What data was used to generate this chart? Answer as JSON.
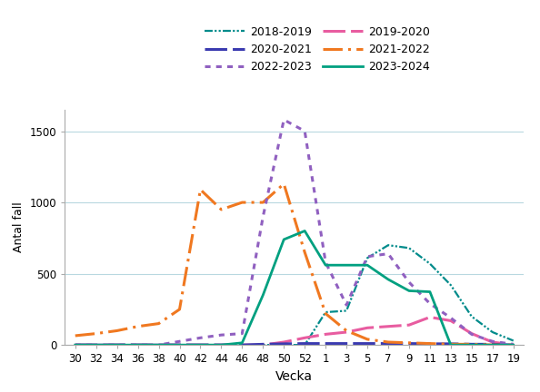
{
  "title": "",
  "xlabel": "Vecka",
  "ylabel": "Antal fall",
  "ylim": [
    0,
    1650
  ],
  "yticks": [
    0,
    500,
    1000,
    1500
  ],
  "x_labels": [
    "30",
    "32",
    "34",
    "36",
    "38",
    "40",
    "42",
    "44",
    "46",
    "48",
    "50",
    "52",
    "1",
    "3",
    "5",
    "7",
    "9",
    "11",
    "13",
    "15",
    "17",
    "19"
  ],
  "background_color": "#ffffff",
  "grid_color": "#b8d8e0",
  "series": [
    {
      "label": "2018-2019",
      "color": "#008b8b",
      "linestyle": "dashdot_dot",
      "linewidth": 1.6,
      "y": [
        0,
        0,
        0,
        0,
        0,
        0,
        0,
        0,
        0,
        0,
        0,
        0,
        230,
        240,
        610,
        700,
        680,
        570,
        420,
        200,
        90,
        30
      ]
    },
    {
      "label": "2019-2020",
      "color": "#e85ca0",
      "linestyle": "longdash",
      "linewidth": 2.2,
      "y": [
        0,
        0,
        0,
        0,
        0,
        0,
        0,
        0,
        0,
        0,
        20,
        50,
        75,
        90,
        120,
        130,
        140,
        195,
        170,
        80,
        20,
        0
      ]
    },
    {
      "label": "2020-2021",
      "color": "#3a3ab0",
      "linestyle": "longdash",
      "linewidth": 2.2,
      "y": [
        0,
        0,
        0,
        0,
        0,
        0,
        0,
        0,
        0,
        5,
        8,
        10,
        10,
        10,
        10,
        10,
        10,
        8,
        8,
        5,
        5,
        0
      ]
    },
    {
      "label": "2021-2022",
      "color": "#f07820",
      "linestyle": "dashdot",
      "linewidth": 2.2,
      "y": [
        65,
        80,
        100,
        130,
        150,
        250,
        1090,
        950,
        1000,
        1000,
        1130,
        650,
        220,
        100,
        40,
        20,
        15,
        10,
        5,
        5,
        0,
        0
      ]
    },
    {
      "label": "2022-2023",
      "color": "#9060c0",
      "linestyle": "dotted",
      "linewidth": 2.2,
      "y": [
        0,
        0,
        0,
        0,
        0,
        25,
        50,
        70,
        80,
        900,
        1580,
        1500,
        580,
        280,
        620,
        640,
        440,
        290,
        190,
        75,
        25,
        5
      ]
    },
    {
      "label": "2023-2024",
      "color": "#00a080",
      "linestyle": "solid",
      "linewidth": 2.0,
      "y": [
        0,
        0,
        0,
        0,
        0,
        0,
        0,
        0,
        15,
        350,
        740,
        800,
        560,
        560,
        560,
        460,
        380,
        373,
        0,
        0,
        0,
        0
      ]
    }
  ],
  "legend_order": [
    0,
    2,
    4,
    1,
    3,
    5
  ],
  "legend_labels": [
    "2018-2019",
    "2020-2021",
    "2022-2023",
    "2019-2020",
    "2021-2022",
    "2023-2024"
  ]
}
